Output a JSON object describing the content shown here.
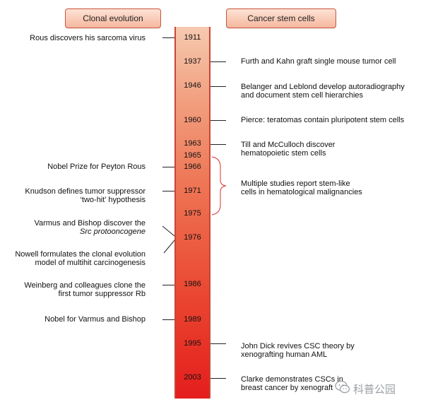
{
  "headers": {
    "left": "Clonal evolution",
    "right": "Cancer stem cells"
  },
  "years": [
    "1911",
    "1937",
    "1946",
    "1960",
    "1963",
    "1965",
    "1966",
    "1971",
    "1975",
    "1976",
    "1986",
    "1989",
    "1995",
    "2003"
  ],
  "left_events": [
    {
      "lines": [
        "Rous discovers his sarcoma virus"
      ]
    },
    {
      "lines": [
        "Nobel Prize for Peyton Rous"
      ]
    },
    {
      "lines": [
        "Knudson defines tumor suppressor",
        "‘two-hit’ hypothesis"
      ]
    },
    {
      "lines": [
        "Varmus and Bishop discover the",
        "Src protooncogene"
      ]
    },
    {
      "lines": [
        "Nowell formulates the clonal evolution",
        "model of multihit carcinogenesis"
      ]
    },
    {
      "lines": [
        "Weinberg and colleagues clone the",
        "first tumor suppressor Rb"
      ]
    },
    {
      "lines": [
        "Nobel for Varmus and Bishop"
      ]
    }
  ],
  "right_events": [
    {
      "lines": [
        "Furth and Kahn graft single mouse tumor cell"
      ]
    },
    {
      "lines": [
        "Belanger and Leblond develop autoradiography",
        "and document stem cell hierarchies"
      ]
    },
    {
      "lines": [
        "Pierce: teratomas contain pluripotent stem cells"
      ]
    },
    {
      "lines": [
        "Till and McCulloch discover",
        "hematopoietic stem cells"
      ]
    },
    {
      "lines": [
        "Multiple studies report stem-like",
        "cells in hematological malignancies"
      ]
    },
    {
      "lines": [
        "John Dick revives CSC theory by",
        "xenografting human AML"
      ]
    },
    {
      "lines": [
        "Clarke demonstrates CSCs in",
        "breast cancer by xenograft"
      ]
    }
  ],
  "watermark": "科普公园",
  "colors": {
    "bar_top": "#f6c9b0",
    "bar_bottom": "#e41d1c",
    "bracket": "#d9534f",
    "header_border": "#c8553d"
  }
}
